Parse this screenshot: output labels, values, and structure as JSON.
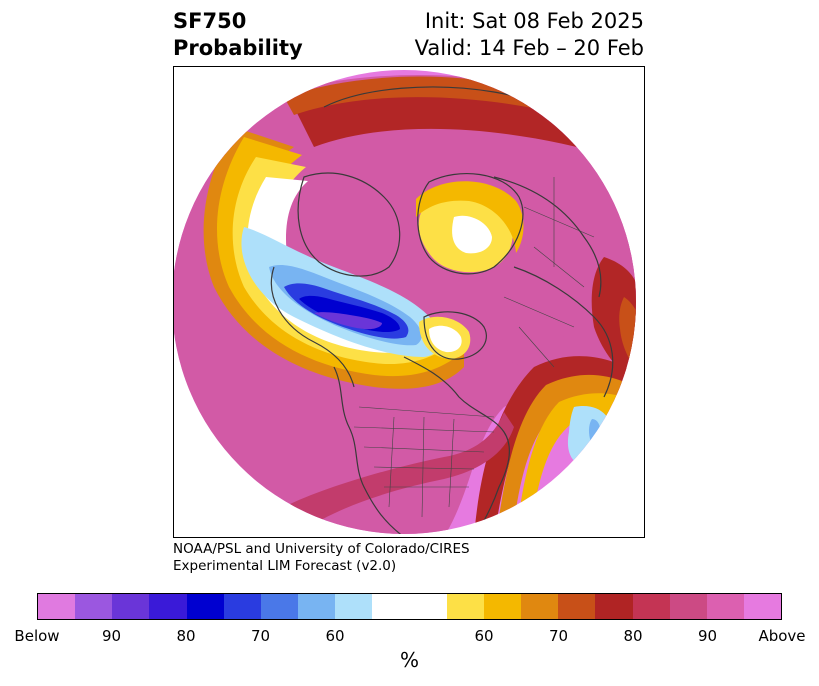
{
  "header": {
    "variable": "SF750",
    "product": "Probability",
    "init": "Init: Sat 08 Feb 2025",
    "valid": "Valid: 14 Feb – 20 Feb"
  },
  "credit": {
    "line1": "NOAA/PSL and University of Colorado/CIRES",
    "line2": "Experimental LIM Forecast (v2.0)"
  },
  "colorbar": {
    "colors": [
      "#e07ae0",
      "#9b57e0",
      "#6a35d8",
      "#3a1ad8",
      "#0000d0",
      "#2a3ce0",
      "#4a78e8",
      "#78b4f2",
      "#aee0fa",
      "#ffffff",
      "#ffffff",
      "#fde046",
      "#f4b800",
      "#e08810",
      "#c85018",
      "#b02424",
      "#c43454",
      "#cc4a84",
      "#dc60b0",
      "#e67ae0"
    ],
    "ticks": [
      "Below",
      "90",
      "80",
      "70",
      "60",
      "60",
      "70",
      "80",
      "90",
      "Above"
    ],
    "unit": "%"
  },
  "map": {
    "projection": "north-polar-stereographic",
    "palette": {
      "magenta": "#e67ae0",
      "pink": "#d25aa6",
      "rose": "#c23c6c",
      "red": "#b22626",
      "rust": "#c85018",
      "orange": "#e08810",
      "gold": "#f4b800",
      "yellow": "#fde046",
      "lightblue": "#aee0fa",
      "skyblue": "#78b4f2",
      "blue": "#2a3ce0",
      "navy": "#0000d0",
      "indigo": "#3a1ad8",
      "violet": "#6a35d8",
      "coast": "#3a3a3a"
    }
  }
}
